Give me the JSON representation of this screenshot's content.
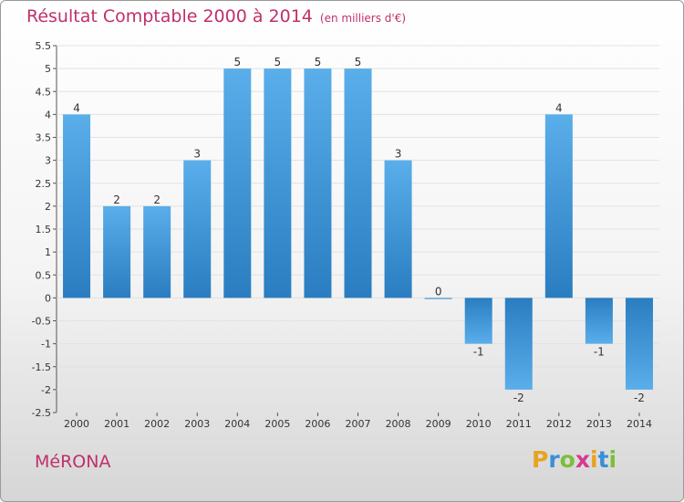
{
  "header": {
    "title": "Résultat Comptable 2000 à 2014",
    "subtitle": "(en milliers d'€)"
  },
  "footer": {
    "city": "MéRONA",
    "logo_letters": [
      "P",
      "r",
      "o",
      "x",
      "i",
      "t",
      "i"
    ],
    "logo_colors": [
      "#e8a320",
      "#3a8fd6",
      "#7bbf3a",
      "#d63a8f",
      "#e8a320",
      "#3a8fd6",
      "#7bbf3a"
    ]
  },
  "colors": {
    "bar_light": "#5aaeea",
    "bar_dark": "#2a7dc0",
    "title": "#c0306a"
  },
  "chart_data": {
    "type": "bar",
    "title": "Résultat Comptable 2000 à 2014",
    "xlabel": "",
    "ylabel": "",
    "categories": [
      "2000",
      "2001",
      "2002",
      "2003",
      "2004",
      "2005",
      "2006",
      "2007",
      "2008",
      "2009",
      "2010",
      "2011",
      "2012",
      "2013",
      "2014"
    ],
    "values": [
      4,
      2,
      2,
      3,
      5,
      5,
      5,
      5,
      3,
      0,
      -1,
      -2,
      4,
      -1,
      -2
    ],
    "ylim": [
      -2.5,
      5.5
    ],
    "yticks": [
      "5.5",
      "5",
      "4.5",
      "4",
      "3.5",
      "3",
      "2.5",
      "2",
      "1.5",
      "1",
      "0.5",
      "0",
      "-0.5",
      "-1",
      "-1.5",
      "-2",
      "-2.5"
    ],
    "grid": true
  }
}
